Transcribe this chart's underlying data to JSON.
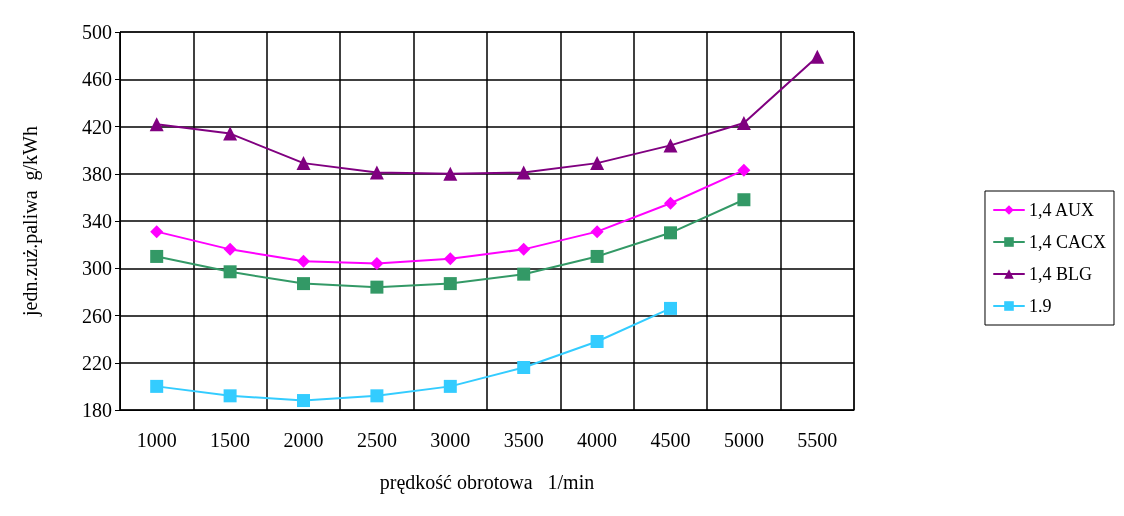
{
  "chart_data": {
    "type": "line",
    "xlabel": "prędkość obrotowa   1/min",
    "ylabel": "jedn.zuż.paliwa  g/kWh",
    "categories": [
      "1000",
      "1500",
      "2000",
      "2500",
      "3000",
      "3500",
      "4000",
      "4500",
      "5000",
      "5500"
    ],
    "series": [
      {
        "name": "1,4 AUX",
        "color": "#ff00ff",
        "marker": "diamond",
        "values": [
          331,
          316,
          306,
          304,
          308,
          316,
          331,
          355,
          383,
          null
        ]
      },
      {
        "name": "1,4 CACX",
        "color": "#339966",
        "marker": "square",
        "values": [
          310,
          297,
          287,
          284,
          287,
          295,
          310,
          330,
          358,
          null
        ]
      },
      {
        "name": "1,4 BLG",
        "color": "#800080",
        "marker": "triangle",
        "values": [
          422,
          414,
          389,
          381,
          380,
          381,
          389,
          404,
          423,
          479
        ]
      },
      {
        "name": "1.9",
        "color": "#33ccff",
        "marker": "square",
        "values": [
          200,
          192,
          188,
          192,
          200,
          216,
          238,
          266,
          null,
          null
        ]
      }
    ],
    "ylim": [
      180,
      500
    ],
    "yticks": [
      180,
      220,
      260,
      300,
      340,
      380,
      420,
      460,
      500
    ],
    "grid": true,
    "legend": "right",
    "line_style": "solid"
  }
}
